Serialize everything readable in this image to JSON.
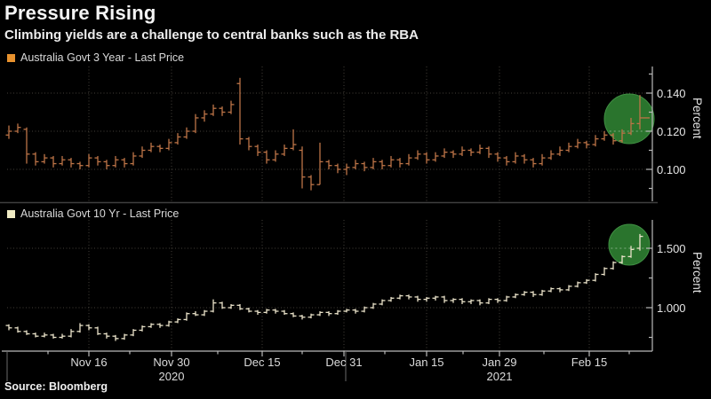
{
  "header": {
    "title": "Pressure Rising",
    "subtitle": "Climbing yields are a challenge to central banks such as the RBA"
  },
  "source": "Source: Bloomberg",
  "colors": {
    "background": "#000000",
    "grid": "#45413a",
    "axis": "#b9b9b9",
    "highlight_green": "#2c7a2f",
    "series_3yr": "#bd7447",
    "series_10yr": "#e9e2c9",
    "swatch_3yr": "#e8922e",
    "swatch_10yr": "#f0ebc4"
  },
  "x_axis": {
    "labels": [
      "Nov 16",
      "Nov 30",
      "Dec 15",
      "Dec 31",
      "Jan 15",
      "Jan 29",
      "Feb 15"
    ],
    "years": [
      "2020",
      "2021"
    ]
  },
  "chart_data": [
    {
      "type": "bar",
      "subtype": "ohlc-daily",
      "series_name": "Australia Govt 3 Year - Last Price",
      "ylabel": "Percent",
      "ylim": [
        0.083,
        0.154
      ],
      "legend_swatch_color": "#e8922e",
      "bar_color": "#bd7447",
      "grid": true,
      "yticks": [
        {
          "value": 0.14,
          "label": "0.140"
        },
        {
          "value": 0.12,
          "label": "0.120"
        },
        {
          "value": 0.1,
          "label": "0.100"
        }
      ],
      "ytick_minor_values": [
        0.15,
        0.13,
        0.11,
        0.09
      ],
      "highlight": {
        "shape": "circle",
        "value": 0.1265,
        "color": "#2c7a2f"
      },
      "bars": [
        [
          0.118,
          0.123,
          0.116,
          0.12
        ],
        [
          0.12,
          0.124,
          0.119,
          0.122
        ],
        [
          0.121,
          0.122,
          0.103,
          0.108
        ],
        [
          0.108,
          0.109,
          0.102,
          0.104
        ],
        [
          0.104,
          0.108,
          0.103,
          0.106
        ],
        [
          0.106,
          0.107,
          0.101,
          0.103
        ],
        [
          0.103,
          0.107,
          0.102,
          0.105
        ],
        [
          0.105,
          0.106,
          0.101,
          0.103
        ],
        [
          0.103,
          0.104,
          0.1,
          0.102
        ],
        [
          0.102,
          0.108,
          0.101,
          0.106
        ],
        [
          0.106,
          0.107,
          0.102,
          0.104
        ],
        [
          0.104,
          0.105,
          0.1,
          0.102
        ],
        [
          0.102,
          0.107,
          0.101,
          0.105
        ],
        [
          0.105,
          0.106,
          0.101,
          0.103
        ],
        [
          0.103,
          0.109,
          0.102,
          0.107
        ],
        [
          0.107,
          0.112,
          0.106,
          0.11
        ],
        [
          0.11,
          0.114,
          0.109,
          0.112
        ],
        [
          0.112,
          0.113,
          0.109,
          0.111
        ],
        [
          0.111,
          0.116,
          0.11,
          0.114
        ],
        [
          0.114,
          0.119,
          0.113,
          0.117
        ],
        [
          0.117,
          0.122,
          0.116,
          0.12
        ],
        [
          0.12,
          0.129,
          0.119,
          0.127
        ],
        [
          0.127,
          0.131,
          0.125,
          0.129
        ],
        [
          0.129,
          0.134,
          0.128,
          0.132
        ],
        [
          0.132,
          0.133,
          0.128,
          0.13
        ],
        [
          0.13,
          0.136,
          0.129,
          0.134
        ],
        [
          0.145,
          0.148,
          0.113,
          0.116
        ],
        [
          0.116,
          0.117,
          0.11,
          0.112
        ],
        [
          0.112,
          0.113,
          0.107,
          0.109
        ],
        [
          0.109,
          0.11,
          0.103,
          0.105
        ],
        [
          0.105,
          0.11,
          0.104,
          0.108
        ],
        [
          0.108,
          0.113,
          0.107,
          0.111
        ],
        [
          0.111,
          0.121,
          0.11,
          0.113
        ],
        [
          0.11,
          0.112,
          0.09,
          0.096
        ],
        [
          0.096,
          0.097,
          0.089,
          0.092
        ],
        [
          0.092,
          0.114,
          0.092,
          0.104
        ],
        [
          0.104,
          0.105,
          0.1,
          0.102
        ],
        [
          0.102,
          0.103,
          0.098,
          0.1
        ],
        [
          0.1,
          0.103,
          0.097,
          0.101
        ],
        [
          0.101,
          0.105,
          0.1,
          0.103
        ],
        [
          0.103,
          0.104,
          0.099,
          0.101
        ],
        [
          0.101,
          0.106,
          0.1,
          0.104
        ],
        [
          0.104,
          0.105,
          0.1,
          0.102
        ],
        [
          0.102,
          0.107,
          0.101,
          0.105
        ],
        [
          0.105,
          0.106,
          0.101,
          0.103
        ],
        [
          0.103,
          0.108,
          0.102,
          0.106
        ],
        [
          0.106,
          0.11,
          0.105,
          0.108
        ],
        [
          0.108,
          0.109,
          0.103,
          0.105
        ],
        [
          0.105,
          0.109,
          0.104,
          0.107
        ],
        [
          0.107,
          0.111,
          0.106,
          0.109
        ],
        [
          0.109,
          0.11,
          0.106,
          0.108
        ],
        [
          0.108,
          0.112,
          0.107,
          0.11
        ],
        [
          0.11,
          0.111,
          0.107,
          0.109
        ],
        [
          0.109,
          0.113,
          0.108,
          0.111
        ],
        [
          0.111,
          0.112,
          0.106,
          0.108
        ],
        [
          0.108,
          0.109,
          0.104,
          0.106
        ],
        [
          0.106,
          0.107,
          0.102,
          0.104
        ],
        [
          0.104,
          0.109,
          0.103,
          0.107
        ],
        [
          0.107,
          0.108,
          0.103,
          0.105
        ],
        [
          0.105,
          0.106,
          0.101,
          0.103
        ],
        [
          0.103,
          0.108,
          0.102,
          0.106
        ],
        [
          0.106,
          0.11,
          0.105,
          0.108
        ],
        [
          0.108,
          0.112,
          0.107,
          0.11
        ],
        [
          0.11,
          0.114,
          0.109,
          0.112
        ],
        [
          0.112,
          0.116,
          0.111,
          0.114
        ],
        [
          0.114,
          0.115,
          0.111,
          0.113
        ],
        [
          0.113,
          0.118,
          0.112,
          0.116
        ],
        [
          0.116,
          0.12,
          0.115,
          0.118
        ],
        [
          0.118,
          0.119,
          0.113,
          0.115
        ],
        [
          0.115,
          0.121,
          0.114,
          0.119
        ],
        [
          0.119,
          0.127,
          0.118,
          0.124
        ],
        [
          0.124,
          0.139,
          0.121,
          0.127
        ]
      ]
    },
    {
      "type": "bar",
      "subtype": "ohlc-daily",
      "series_name": "Australia Govt 10 Yr - Last Price",
      "ylabel": "Percent",
      "ylim": [
        0.63,
        1.74
      ],
      "legend_swatch_color": "#f0ebc4",
      "bar_color": "#e9e2c9",
      "grid": true,
      "yticks": [
        {
          "value": 1.5,
          "label": "1.500"
        },
        {
          "value": 1.0,
          "label": "1.000"
        }
      ],
      "ytick_minor_values": [
        1.25,
        0.75
      ],
      "highlight": {
        "shape": "circle",
        "value": 1.53,
        "color": "#2c7a2f"
      },
      "bars": [
        [
          0.85,
          0.86,
          0.81,
          0.83
        ],
        [
          0.83,
          0.84,
          0.79,
          0.8
        ],
        [
          0.8,
          0.81,
          0.77,
          0.78
        ],
        [
          0.78,
          0.79,
          0.75,
          0.76
        ],
        [
          0.76,
          0.79,
          0.75,
          0.77
        ],
        [
          0.77,
          0.78,
          0.74,
          0.75
        ],
        [
          0.75,
          0.78,
          0.74,
          0.76
        ],
        [
          0.76,
          0.82,
          0.75,
          0.8
        ],
        [
          0.8,
          0.87,
          0.79,
          0.85
        ],
        [
          0.85,
          0.86,
          0.81,
          0.83
        ],
        [
          0.83,
          0.84,
          0.77,
          0.78
        ],
        [
          0.78,
          0.79,
          0.74,
          0.76
        ],
        [
          0.76,
          0.77,
          0.72,
          0.74
        ],
        [
          0.74,
          0.78,
          0.73,
          0.77
        ],
        [
          0.77,
          0.82,
          0.76,
          0.81
        ],
        [
          0.81,
          0.85,
          0.8,
          0.84
        ],
        [
          0.84,
          0.87,
          0.83,
          0.86
        ],
        [
          0.86,
          0.87,
          0.83,
          0.85
        ],
        [
          0.85,
          0.89,
          0.84,
          0.88
        ],
        [
          0.88,
          0.91,
          0.87,
          0.9
        ],
        [
          0.9,
          0.96,
          0.89,
          0.95
        ],
        [
          0.95,
          0.97,
          0.93,
          0.94
        ],
        [
          0.94,
          0.98,
          0.93,
          0.97
        ],
        [
          0.97,
          1.07,
          0.96,
          1.04
        ],
        [
          1.04,
          1.05,
          0.99,
          1.0
        ],
        [
          1.0,
          1.03,
          0.99,
          1.02
        ],
        [
          1.02,
          1.03,
          0.98,
          0.99
        ],
        [
          0.99,
          1.0,
          0.96,
          0.97
        ],
        [
          0.97,
          0.98,
          0.94,
          0.96
        ],
        [
          0.96,
          0.99,
          0.95,
          0.98
        ],
        [
          0.98,
          0.99,
          0.95,
          0.97
        ],
        [
          0.97,
          0.98,
          0.94,
          0.95
        ],
        [
          0.95,
          0.96,
          0.92,
          0.93
        ],
        [
          0.93,
          0.94,
          0.9,
          0.92
        ],
        [
          0.92,
          0.95,
          0.91,
          0.94
        ],
        [
          0.94,
          0.97,
          0.93,
          0.96
        ],
        [
          0.96,
          0.97,
          0.93,
          0.95
        ],
        [
          0.95,
          0.98,
          0.94,
          0.97
        ],
        [
          0.97,
          0.99,
          0.96,
          0.98
        ],
        [
          0.98,
          0.99,
          0.95,
          0.97
        ],
        [
          0.97,
          1.01,
          0.96,
          1.0
        ],
        [
          1.0,
          1.04,
          0.99,
          1.03
        ],
        [
          1.03,
          1.07,
          1.02,
          1.06
        ],
        [
          1.06,
          1.09,
          1.05,
          1.08
        ],
        [
          1.08,
          1.11,
          1.07,
          1.1
        ],
        [
          1.1,
          1.11,
          1.07,
          1.09
        ],
        [
          1.09,
          1.1,
          1.05,
          1.07
        ],
        [
          1.07,
          1.09,
          1.05,
          1.08
        ],
        [
          1.08,
          1.1,
          1.06,
          1.09
        ],
        [
          1.09,
          1.1,
          1.04,
          1.06
        ],
        [
          1.06,
          1.08,
          1.04,
          1.07
        ],
        [
          1.07,
          1.08,
          1.03,
          1.05
        ],
        [
          1.05,
          1.07,
          1.03,
          1.06
        ],
        [
          1.06,
          1.07,
          1.02,
          1.04
        ],
        [
          1.04,
          1.08,
          1.03,
          1.07
        ],
        [
          1.07,
          1.08,
          1.04,
          1.06
        ],
        [
          1.06,
          1.1,
          1.05,
          1.09
        ],
        [
          1.09,
          1.12,
          1.08,
          1.11
        ],
        [
          1.11,
          1.14,
          1.1,
          1.13
        ],
        [
          1.13,
          1.14,
          1.09,
          1.11
        ],
        [
          1.11,
          1.15,
          1.1,
          1.14
        ],
        [
          1.14,
          1.17,
          1.13,
          1.16
        ],
        [
          1.16,
          1.17,
          1.13,
          1.15
        ],
        [
          1.15,
          1.19,
          1.14,
          1.18
        ],
        [
          1.18,
          1.22,
          1.17,
          1.21
        ],
        [
          1.21,
          1.24,
          1.2,
          1.23
        ],
        [
          1.23,
          1.29,
          1.22,
          1.28
        ],
        [
          1.28,
          1.34,
          1.27,
          1.33
        ],
        [
          1.33,
          1.39,
          1.32,
          1.38
        ],
        [
          1.38,
          1.44,
          1.37,
          1.43
        ],
        [
          1.43,
          1.52,
          1.42,
          1.49
        ],
        [
          1.5,
          1.62,
          1.48,
          1.6
        ]
      ]
    }
  ]
}
